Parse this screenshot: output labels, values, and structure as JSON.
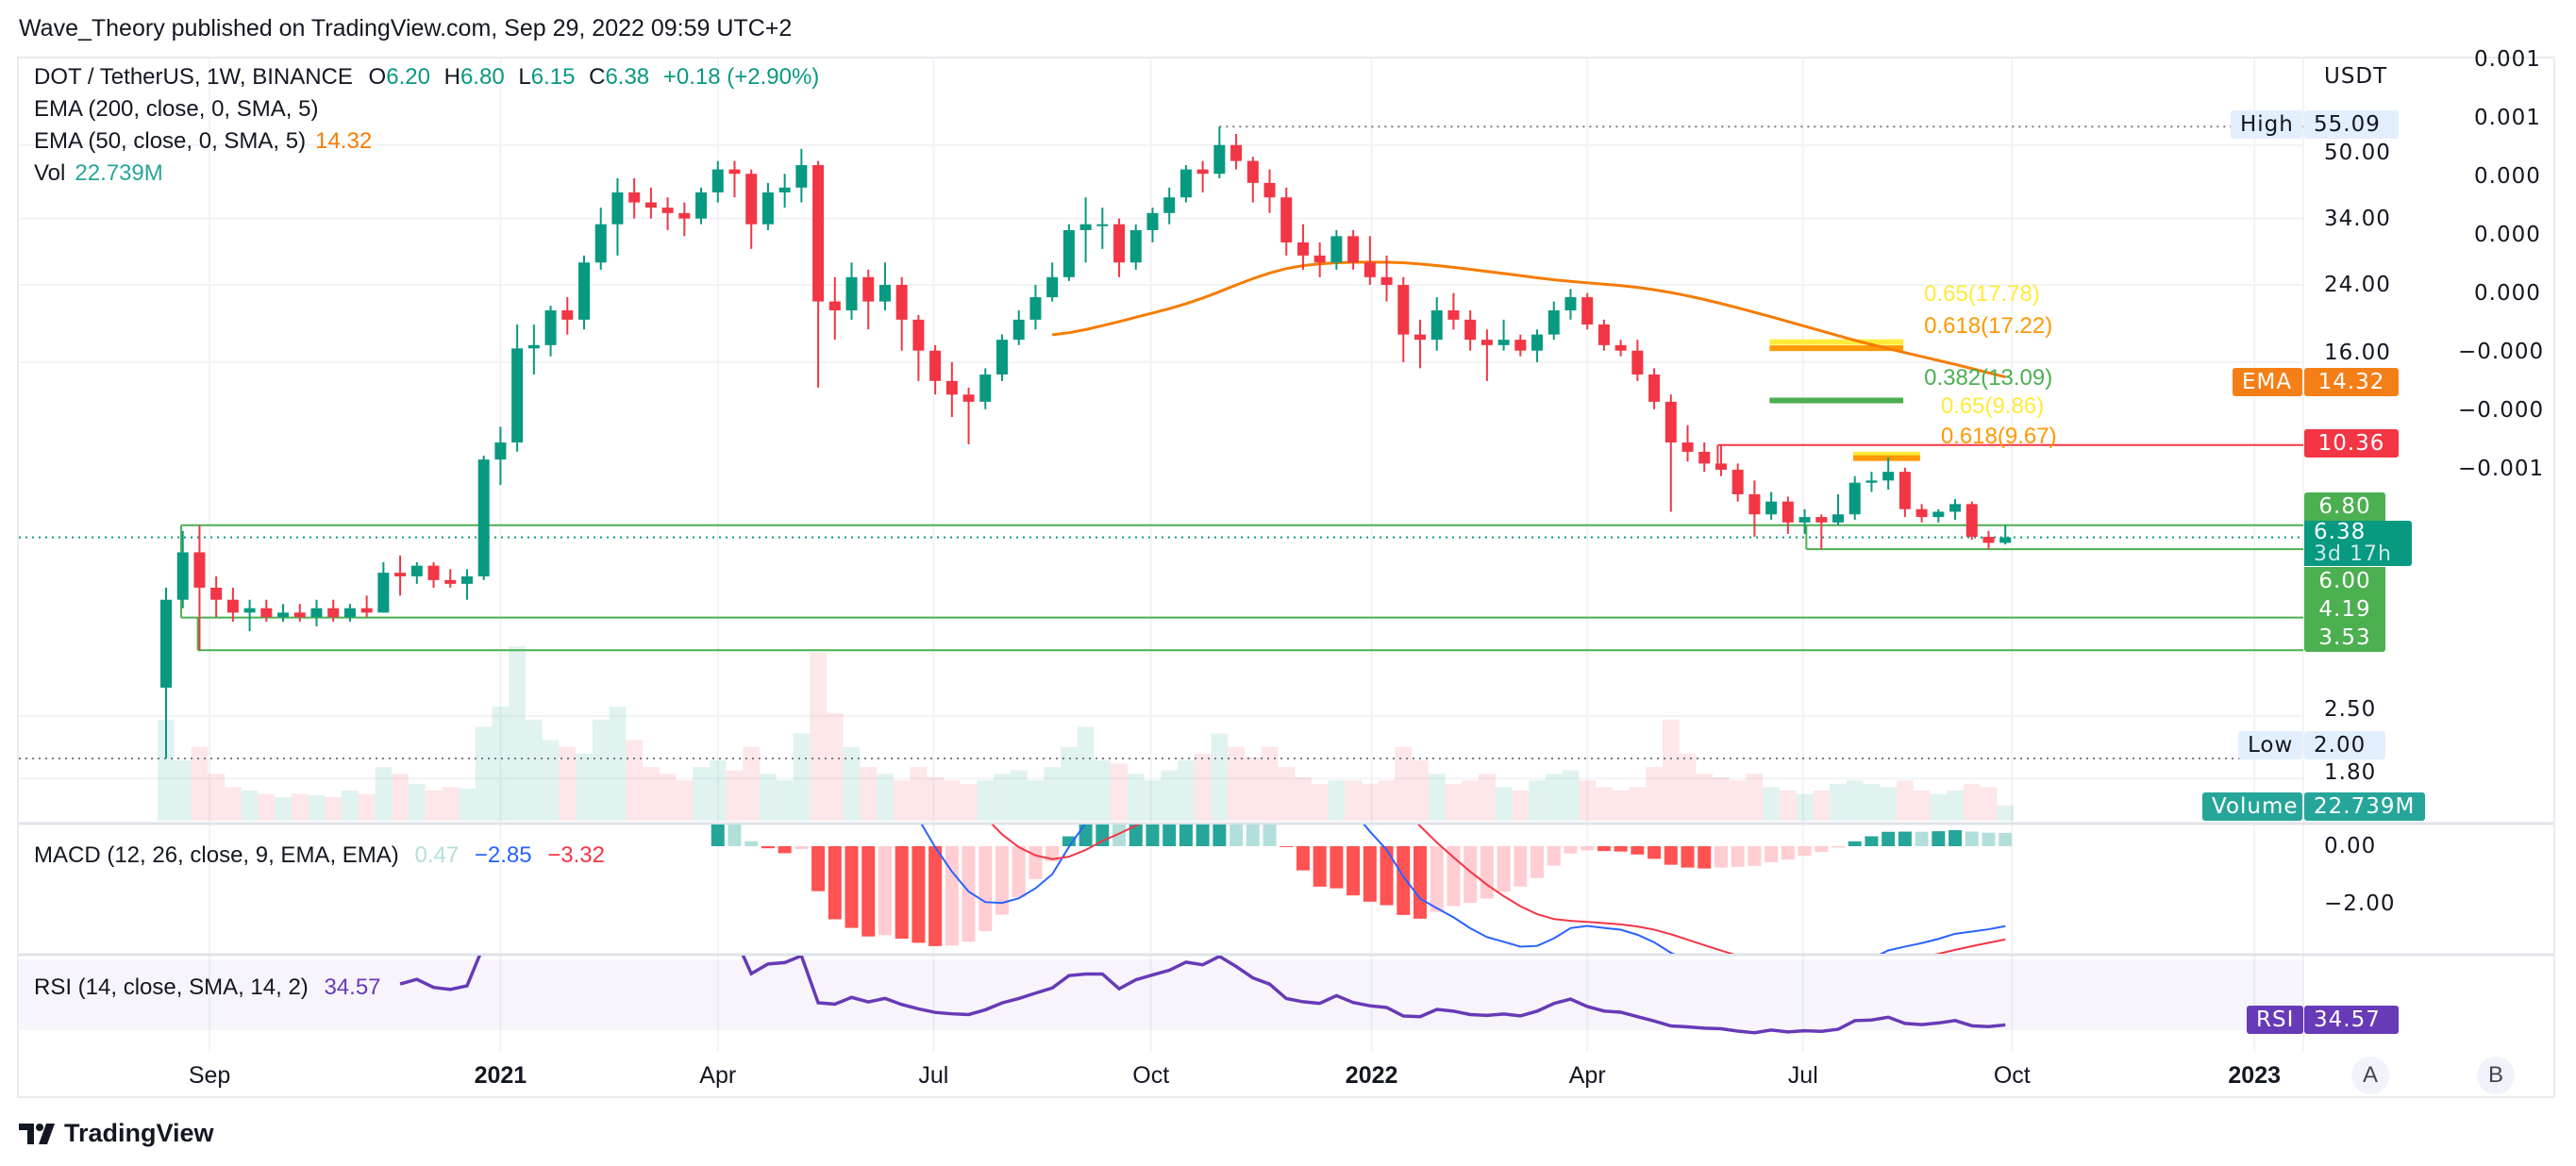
{
  "publisher": "Wave_Theory published on TradingView.com, Sep 29, 2022 09:59 UTC+2",
  "legend": {
    "symbol": "DOT / TetherUS, 1W, BINANCE",
    "o_label": "O",
    "o": "6.20",
    "h_label": "H",
    "h": "6.80",
    "l_label": "L",
    "l": "6.15",
    "c_label": "C",
    "c": "6.38",
    "change": "+0.18 (+2.90%)",
    "ema200": "EMA (200, close, 0, SMA, 5)",
    "ema50": "EMA (50, close, 0, SMA, 5)",
    "ema50_value": "14.32",
    "vol": "Vol",
    "vol_value": "22.739M",
    "macd": "MACD (12, 26, close, 9, EMA, EMA)",
    "macd_hist": "0.47",
    "macd_line": "−2.85",
    "macd_signal": "−3.32",
    "rsi": "RSI (14, close, SMA, 14, 2)",
    "rsi_value": "34.57"
  },
  "price_axis": {
    "currency": "USDT",
    "ticks": [
      "50.00",
      "34.00",
      "24.00",
      "16.00",
      "2.50",
      "1.80"
    ],
    "tick_values": [
      50,
      34,
      24,
      16,
      2.5,
      1.8
    ],
    "tags": {
      "high_label": "High",
      "high": "55.09",
      "ema_label": "EMA",
      "ema": "14.32",
      "red_level": "10.36",
      "l680": "6.80",
      "last": "6.38",
      "countdown": "3d 17h",
      "l600": "6.00",
      "l419": "4.19",
      "l353": "3.53",
      "low_label": "Low",
      "low": "2.00",
      "volume_label": "Volume",
      "volume": "22.739M"
    }
  },
  "scale_b": [
    "0.001",
    "0.001",
    "0.000",
    "0.000",
    "0.000",
    "−0.000",
    "−0.000",
    "−0.001"
  ],
  "macd_axis": [
    "0.00",
    "−2.00"
  ],
  "rsi_tag": {
    "label": "RSI",
    "value": "34.57"
  },
  "time_axis": [
    {
      "label": "Sep",
      "week": 2.6,
      "year": false
    },
    {
      "label": "2021",
      "week": 20.0,
      "year": true
    },
    {
      "label": "Apr",
      "week": 33.0,
      "year": false
    },
    {
      "label": "Jul",
      "week": 45.9,
      "year": false
    },
    {
      "label": "Oct",
      "week": 58.9,
      "year": false
    },
    {
      "label": "2022",
      "week": 72.1,
      "year": true
    },
    {
      "label": "Apr",
      "week": 85.0,
      "year": false
    },
    {
      "label": "Jul",
      "week": 97.9,
      "year": false
    },
    {
      "label": "Oct",
      "week": 110.4,
      "year": false
    },
    {
      "label": "2023",
      "week": 124.9,
      "year": true
    }
  ],
  "scale_buttons": [
    "A",
    "B"
  ],
  "footer": {
    "brand": "TradingView"
  },
  "colors": {
    "up": "#089981",
    "down": "#f23645",
    "ema": "#f57c00",
    "level": "#4caf50",
    "macd": "#2962ff",
    "signal": "#f23645",
    "rsi": "#673ab7"
  },
  "chart_data": {
    "type": "candlestick",
    "title": "DOT / TetherUS, 1W, BINANCE",
    "y_scale": "log",
    "first_week": "2020-08-17",
    "candles_ohlc": [
      [
        2.9,
        4.9,
        2.0,
        4.6
      ],
      [
        4.6,
        6.6,
        4.4,
        5.9
      ],
      [
        5.9,
        6.8,
        3.53,
        4.9
      ],
      [
        4.9,
        5.2,
        4.2,
        4.6
      ],
      [
        4.6,
        4.9,
        4.1,
        4.3
      ],
      [
        4.3,
        4.6,
        3.9,
        4.4
      ],
      [
        4.4,
        4.6,
        4.1,
        4.2
      ],
      [
        4.2,
        4.5,
        4.1,
        4.3
      ],
      [
        4.3,
        4.5,
        4.1,
        4.2
      ],
      [
        4.2,
        4.6,
        4.0,
        4.4
      ],
      [
        4.4,
        4.6,
        4.1,
        4.2
      ],
      [
        4.2,
        4.5,
        4.1,
        4.4
      ],
      [
        4.4,
        4.7,
        4.2,
        4.3
      ],
      [
        4.3,
        5.6,
        4.3,
        5.3
      ],
      [
        5.3,
        5.8,
        4.7,
        5.2
      ],
      [
        5.2,
        5.6,
        5.0,
        5.5
      ],
      [
        5.5,
        5.6,
        4.9,
        5.1
      ],
      [
        5.1,
        5.4,
        4.9,
        5.0
      ],
      [
        5.0,
        5.4,
        4.6,
        5.2
      ],
      [
        5.2,
        9.8,
        5.1,
        9.6
      ],
      [
        9.6,
        11.4,
        8.4,
        10.5
      ],
      [
        10.5,
        19.5,
        10.0,
        17.2
      ],
      [
        17.2,
        19.5,
        15.0,
        17.5
      ],
      [
        17.5,
        21.5,
        16.5,
        21
      ],
      [
        21,
        22.5,
        18.5,
        20
      ],
      [
        20,
        28,
        19,
        27
      ],
      [
        27,
        36,
        26,
        33
      ],
      [
        33,
        42,
        28,
        39
      ],
      [
        39,
        42,
        34,
        37
      ],
      [
        37,
        40,
        34,
        36
      ],
      [
        36,
        38,
        32,
        35
      ],
      [
        35,
        37,
        31,
        34
      ],
      [
        34,
        40,
        33,
        39
      ],
      [
        39,
        46,
        37,
        44
      ],
      [
        44,
        46,
        38,
        43
      ],
      [
        43,
        44,
        29,
        33
      ],
      [
        33,
        41,
        32,
        39
      ],
      [
        39,
        43,
        36,
        40
      ],
      [
        40,
        49,
        37,
        45
      ],
      [
        45,
        46,
        14,
        22
      ],
      [
        22,
        25,
        18,
        21
      ],
      [
        21,
        27,
        20,
        25
      ],
      [
        25,
        26,
        19,
        22
      ],
      [
        22,
        27,
        21,
        24
      ],
      [
        24,
        25,
        17,
        20
      ],
      [
        20,
        20.5,
        14.5,
        17
      ],
      [
        17,
        17.5,
        13.5,
        14.5
      ],
      [
        14.5,
        16,
        12,
        13.5
      ],
      [
        13.5,
        14,
        10.4,
        13
      ],
      [
        13,
        15.5,
        12.5,
        15
      ],
      [
        15,
        18.5,
        14.5,
        18
      ],
      [
        18,
        21,
        17.5,
        20
      ],
      [
        20,
        24,
        19,
        22.5
      ],
      [
        22.5,
        27,
        22,
        25
      ],
      [
        25,
        33,
        24.5,
        32
      ],
      [
        32,
        38,
        27,
        33
      ],
      [
        33,
        36,
        29,
        33
      ],
      [
        33,
        34,
        25,
        27
      ],
      [
        27,
        33,
        26,
        32
      ],
      [
        32,
        36,
        30,
        35
      ],
      [
        35,
        40,
        33,
        38
      ],
      [
        38,
        45,
        37,
        44
      ],
      [
        44,
        46,
        39,
        43
      ],
      [
        43,
        55.09,
        42,
        50
      ],
      [
        50,
        53,
        44,
        46
      ],
      [
        46,
        47,
        37,
        41
      ],
      [
        41,
        44,
        35,
        38
      ],
      [
        38,
        40,
        28,
        30
      ],
      [
        30,
        33,
        26,
        28
      ],
      [
        28,
        30,
        25,
        27
      ],
      [
        27,
        32,
        26,
        31
      ],
      [
        31,
        32,
        26,
        27
      ],
      [
        27,
        31,
        24,
        25
      ],
      [
        25,
        28,
        22,
        24
      ],
      [
        24,
        25,
        16,
        18.5
      ],
      [
        18.5,
        20,
        15.5,
        18
      ],
      [
        18,
        22.5,
        17,
        21
      ],
      [
        21,
        23,
        19,
        20
      ],
      [
        20,
        21,
        17,
        18
      ],
      [
        18,
        19,
        14.5,
        17.5
      ],
      [
        17.5,
        20,
        17,
        18
      ],
      [
        18,
        18.5,
        16.5,
        17
      ],
      [
        17,
        19,
        16,
        18.5
      ],
      [
        18.5,
        22,
        18,
        21
      ],
      [
        21,
        23.5,
        20,
        22.5
      ],
      [
        22.5,
        23,
        19,
        19.5
      ],
      [
        19.5,
        20,
        17,
        17.5
      ],
      [
        17.5,
        18,
        16.5,
        17
      ],
      [
        17,
        18,
        14.5,
        15
      ],
      [
        15,
        15.5,
        12.5,
        13
      ],
      [
        13,
        13.5,
        7.3,
        10.5
      ],
      [
        10.5,
        11.5,
        9.5,
        10
      ],
      [
        10,
        10.5,
        9,
        9.4
      ],
      [
        9.4,
        10.4,
        8.8,
        9.1
      ],
      [
        9.1,
        9.4,
        7.7,
        8.0
      ],
      [
        8.0,
        8.6,
        6.4,
        7.2
      ],
      [
        7.2,
        8.1,
        7.0,
        7.7
      ],
      [
        7.7,
        7.9,
        6.5,
        6.9
      ],
      [
        6.9,
        7.4,
        6.5,
        7.1
      ],
      [
        7.1,
        7.2,
        6.0,
        6.9
      ],
      [
        6.9,
        8.0,
        6.8,
        7.2
      ],
      [
        7.2,
        8.8,
        7.0,
        8.5
      ],
      [
        8.5,
        9.0,
        8.1,
        8.6
      ],
      [
        8.6,
        9.7,
        8.2,
        9.0
      ],
      [
        9.0,
        9.2,
        7.1,
        7.4
      ],
      [
        7.4,
        7.6,
        6.9,
        7.1
      ],
      [
        7.1,
        7.4,
        6.9,
        7.3
      ],
      [
        7.3,
        7.8,
        7.0,
        7.6
      ],
      [
        7.6,
        7.7,
        6.3,
        6.4
      ],
      [
        6.4,
        6.6,
        6.0,
        6.2
      ],
      [
        6.2,
        6.8,
        6.15,
        6.38
      ]
    ],
    "volume_millions": [
      150,
      90,
      110,
      70,
      50,
      45,
      40,
      35,
      40,
      38,
      35,
      45,
      40,
      80,
      70,
      55,
      45,
      50,
      48,
      140,
      170,
      260,
      150,
      120,
      110,
      100,
      150,
      170,
      120,
      80,
      70,
      60,
      80,
      90,
      75,
      110,
      70,
      60,
      130,
      250,
      160,
      110,
      80,
      70,
      60,
      80,
      65,
      60,
      55,
      60,
      70,
      75,
      60,
      80,
      110,
      140,
      90,
      85,
      70,
      60,
      75,
      90,
      100,
      130,
      110,
      95,
      110,
      80,
      65,
      55,
      60,
      60,
      55,
      60,
      110,
      90,
      70,
      55,
      60,
      70,
      50,
      45,
      60,
      70,
      75,
      60,
      50,
      45,
      50,
      80,
      150,
      100,
      70,
      65,
      60,
      70,
      50,
      45,
      40,
      45,
      55,
      60,
      55,
      50,
      60,
      45,
      40,
      45,
      55,
      50,
      22.739
    ],
    "levels": [
      {
        "price": 6.8,
        "from_week": 0.9,
        "color": "#4caf50"
      },
      {
        "price": 6.0,
        "from_week": 98.1,
        "color": "#4caf50"
      },
      {
        "price": 4.19,
        "from_week": 0.9,
        "color": "#4caf50"
      },
      {
        "price": 3.53,
        "from_week": 1.9,
        "color": "#4caf50"
      },
      {
        "price": 10.36,
        "from_week": 92.8,
        "color": "#f23645"
      }
    ],
    "fib": [
      {
        "label": "0.65(17.78)",
        "price": 17.78,
        "from_week": 95.9,
        "to_week": 103.9,
        "color": "#ffeb3b"
      },
      {
        "label": "0.618(17.22)",
        "price": 17.22,
        "from_week": 95.9,
        "to_week": 103.9,
        "color": "#ff9800"
      },
      {
        "label": "0.382(13.09)",
        "price": 13.09,
        "from_week": 95.9,
        "to_week": 103.9,
        "color": "#4caf50"
      },
      {
        "label": "0.65(9.86)",
        "price": 9.86,
        "from_week": 100.9,
        "to_week": 104.9,
        "color": "#ffeb3b"
      },
      {
        "label": "0.618(9.67)",
        "price": 9.67,
        "from_week": 100.9,
        "to_week": 104.9,
        "color": "#ff9800"
      }
    ],
    "high": 55.09,
    "low": 2.0,
    "last": 6.38,
    "macd_range": [
      -4.5,
      0.8
    ],
    "rsi_band": [
      30,
      70
    ]
  }
}
